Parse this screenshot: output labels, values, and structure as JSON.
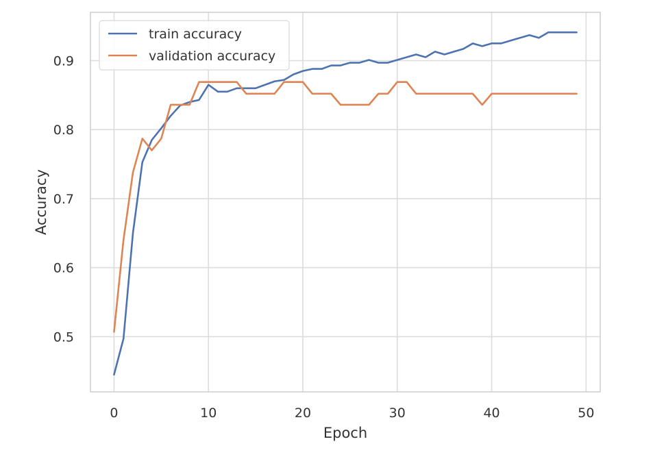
{
  "chart_data": {
    "type": "line",
    "title": "",
    "xlabel": "Epoch",
    "ylabel": "Accuracy",
    "xlim": [
      -2.5,
      51.5
    ],
    "ylim": [
      0.42,
      0.97
    ],
    "xticks": [
      0,
      10,
      20,
      30,
      40,
      50
    ],
    "yticks": [
      0.5,
      0.6,
      0.7,
      0.8,
      0.9
    ],
    "xtick_labels": [
      "0",
      "10",
      "20",
      "30",
      "40",
      "50"
    ],
    "ytick_labels": [
      "0.5",
      "0.6",
      "0.7",
      "0.8",
      "0.9"
    ],
    "grid": true,
    "legend_position": "upper-left",
    "x": [
      0,
      1,
      2,
      3,
      4,
      5,
      6,
      7,
      8,
      9,
      10,
      11,
      12,
      13,
      14,
      15,
      16,
      17,
      18,
      19,
      20,
      21,
      22,
      23,
      24,
      25,
      26,
      27,
      28,
      29,
      30,
      31,
      32,
      33,
      34,
      35,
      36,
      37,
      38,
      39,
      40,
      41,
      42,
      43,
      44,
      45,
      46,
      47,
      48,
      49
    ],
    "series": [
      {
        "name": "train accuracy",
        "color": "#4c72b0",
        "values": [
          0.445,
          0.497,
          0.65,
          0.753,
          0.785,
          0.802,
          0.82,
          0.835,
          0.84,
          0.843,
          0.865,
          0.855,
          0.855,
          0.86,
          0.86,
          0.86,
          0.865,
          0.87,
          0.872,
          0.88,
          0.885,
          0.888,
          0.888,
          0.893,
          0.893,
          0.897,
          0.897,
          0.901,
          0.897,
          0.897,
          0.901,
          0.905,
          0.909,
          0.905,
          0.913,
          0.909,
          0.913,
          0.917,
          0.925,
          0.921,
          0.925,
          0.925,
          0.929,
          0.933,
          0.937,
          0.933,
          0.941,
          0.941,
          0.941,
          0.941
        ]
      },
      {
        "name": "validation accuracy",
        "color": "#dd8452",
        "values": [
          0.507,
          0.64,
          0.738,
          0.787,
          0.77,
          0.787,
          0.836,
          0.836,
          0.836,
          0.869,
          0.869,
          0.869,
          0.869,
          0.869,
          0.852,
          0.852,
          0.852,
          0.852,
          0.869,
          0.869,
          0.869,
          0.852,
          0.852,
          0.852,
          0.836,
          0.836,
          0.836,
          0.836,
          0.852,
          0.852,
          0.869,
          0.869,
          0.852,
          0.852,
          0.852,
          0.852,
          0.852,
          0.852,
          0.852,
          0.836,
          0.852,
          0.852,
          0.852,
          0.852,
          0.852,
          0.852,
          0.852,
          0.852,
          0.852,
          0.852
        ]
      }
    ]
  }
}
